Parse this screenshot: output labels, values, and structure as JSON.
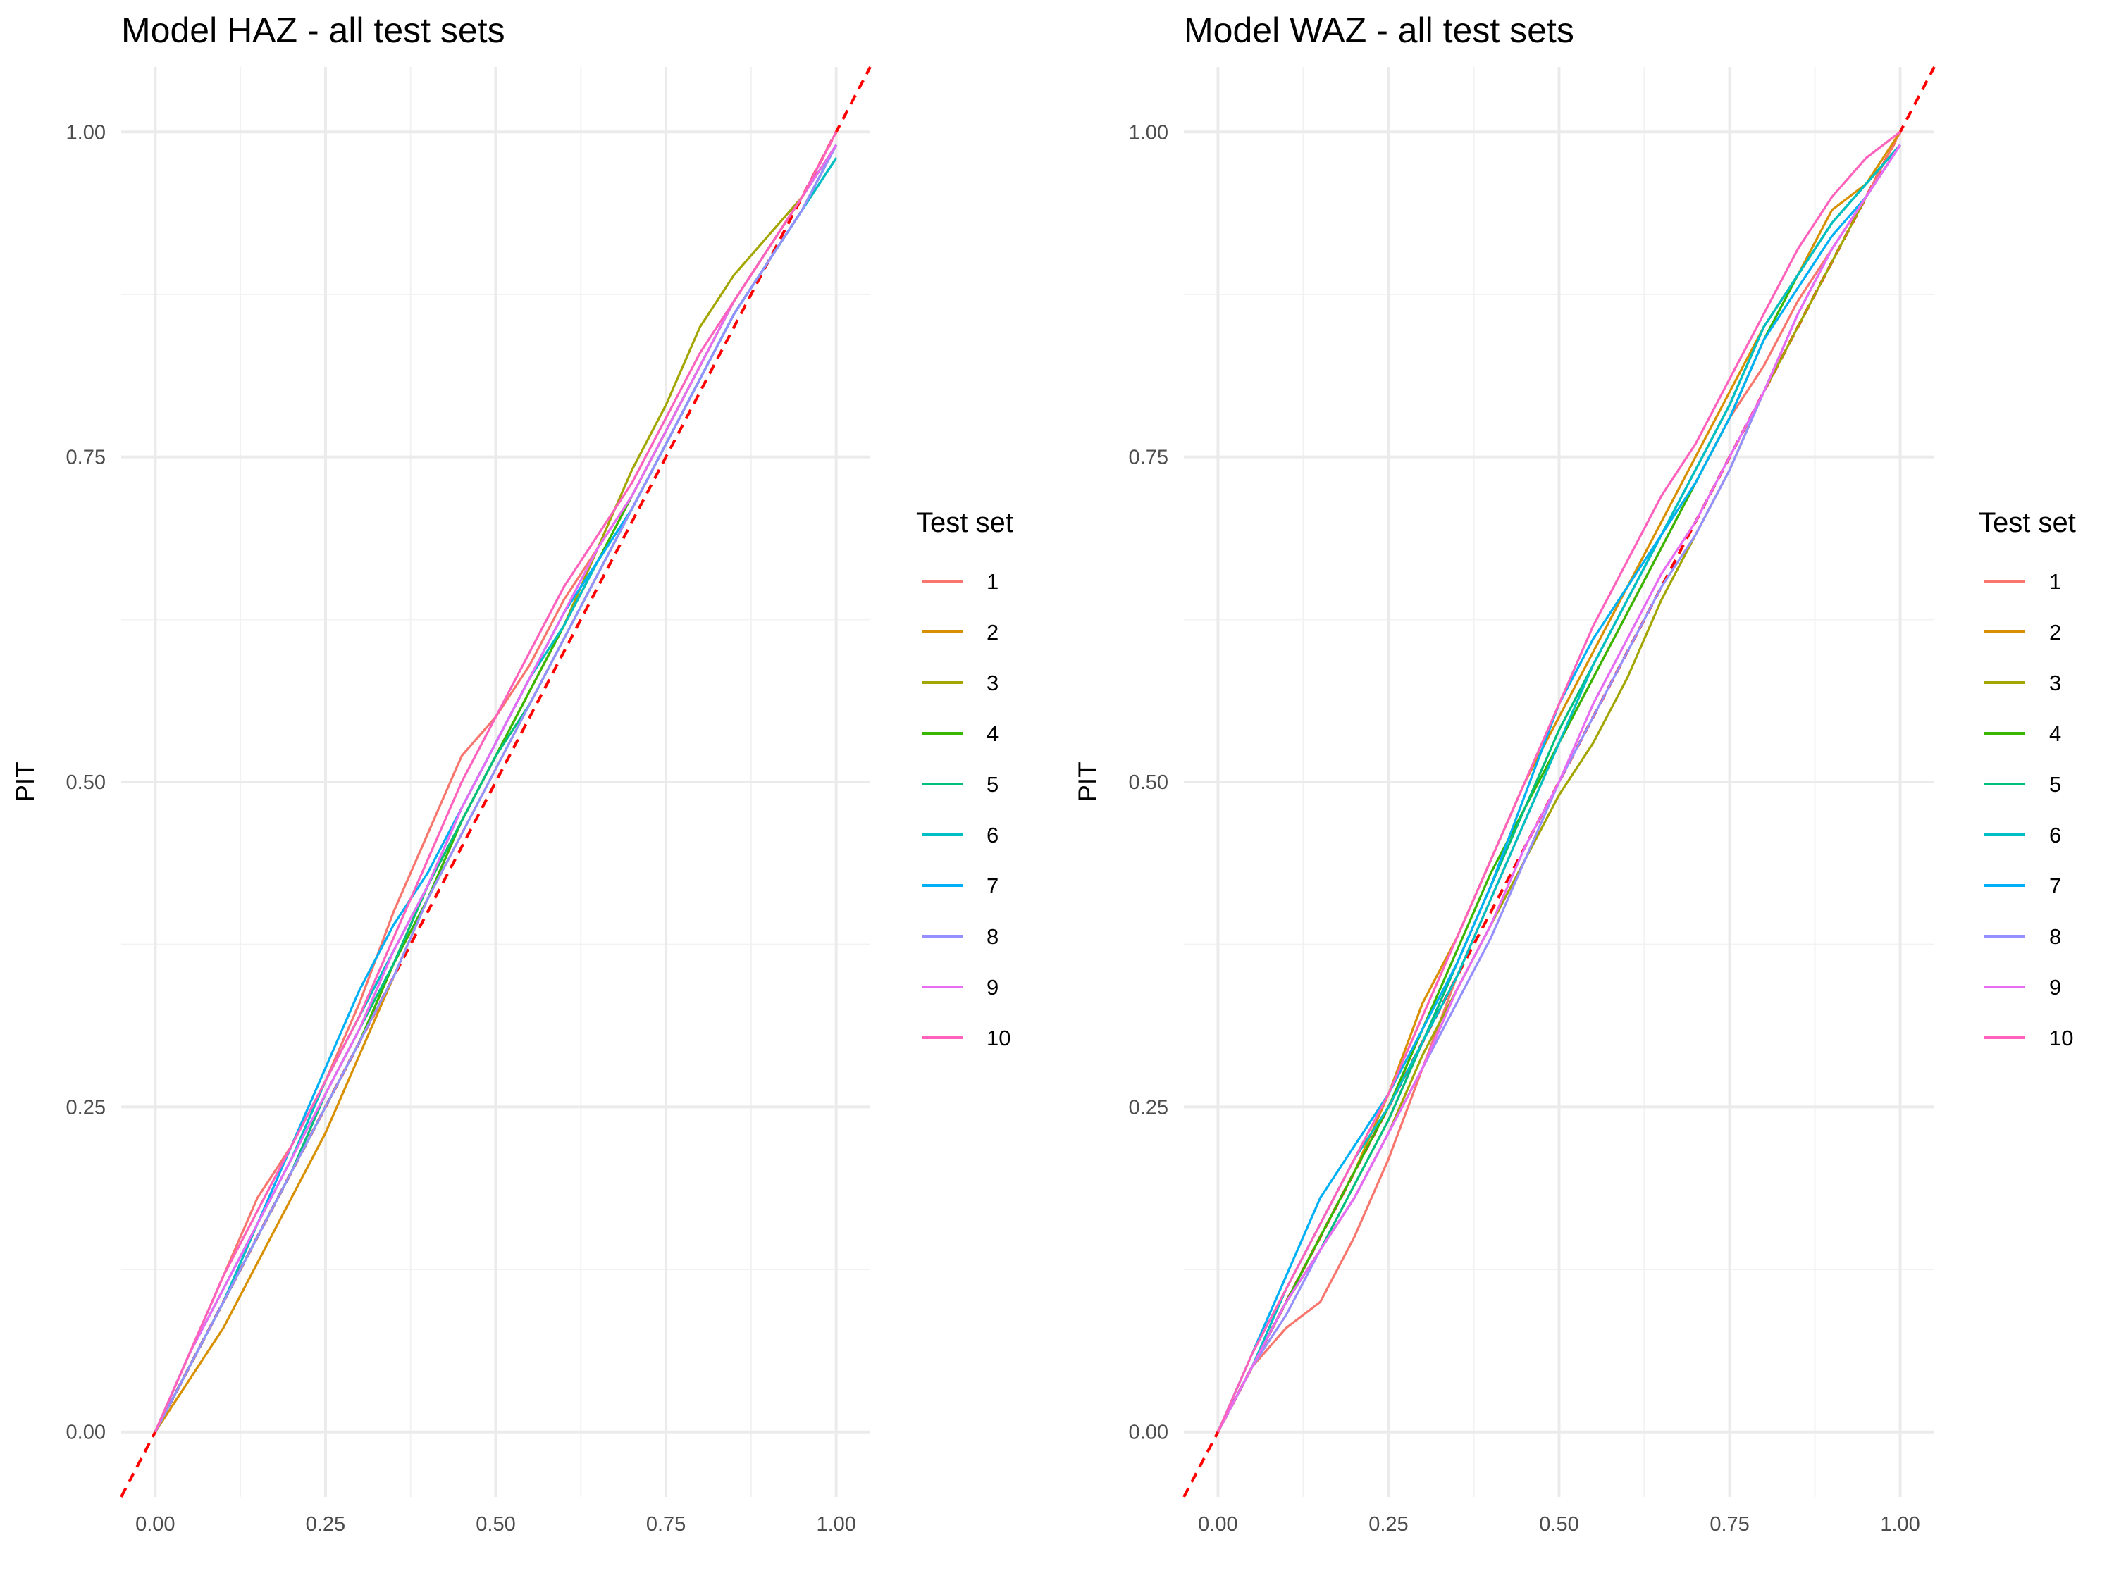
{
  "chart_data": [
    {
      "type": "line",
      "title": "Model HAZ - all test sets",
      "xlabel": "",
      "ylabel": "PIT",
      "xlim": [
        -0.05,
        1.05
      ],
      "ylim": [
        -0.05,
        1.05
      ],
      "x_ticks": [
        "0.00",
        "0.25",
        "0.50",
        "0.75",
        "1.00"
      ],
      "y_ticks": [
        "0.00",
        "0.25",
        "0.50",
        "0.75",
        "1.00"
      ],
      "reference_line": {
        "label": "y = x",
        "color": "#ff0000",
        "style": "dashed"
      },
      "legend": {
        "title": "Test set",
        "position": "right"
      },
      "x": [
        0,
        0.05,
        0.1,
        0.15,
        0.2,
        0.25,
        0.3,
        0.35,
        0.4,
        0.45,
        0.5,
        0.55,
        0.6,
        0.65,
        0.7,
        0.75,
        0.8,
        0.85,
        0.9,
        0.95,
        1.0
      ],
      "series": [
        {
          "name": "1",
          "color": "#F8766D",
          "values": [
            0.0,
            0.06,
            0.12,
            0.18,
            0.22,
            0.27,
            0.33,
            0.4,
            0.46,
            0.52,
            0.55,
            0.59,
            0.64,
            0.68,
            0.72,
            0.77,
            0.82,
            0.87,
            0.91,
            0.95,
            1.0
          ]
        },
        {
          "name": "2",
          "color": "#D89000",
          "values": [
            0.0,
            0.04,
            0.08,
            0.13,
            0.18,
            0.23,
            0.29,
            0.35,
            0.41,
            0.46,
            0.51,
            0.56,
            0.61,
            0.66,
            0.71,
            0.76,
            0.81,
            0.86,
            0.9,
            0.94,
            0.99
          ]
        },
        {
          "name": "3",
          "color": "#A3A500",
          "values": [
            0.0,
            0.05,
            0.1,
            0.15,
            0.2,
            0.25,
            0.3,
            0.36,
            0.42,
            0.47,
            0.52,
            0.57,
            0.62,
            0.68,
            0.74,
            0.79,
            0.85,
            0.89,
            0.92,
            0.95,
            0.99
          ]
        },
        {
          "name": "4",
          "color": "#39B600",
          "values": [
            0.0,
            0.05,
            0.1,
            0.15,
            0.2,
            0.25,
            0.3,
            0.36,
            0.41,
            0.47,
            0.52,
            0.57,
            0.62,
            0.67,
            0.72,
            0.77,
            0.82,
            0.87,
            0.91,
            0.95,
            0.99
          ]
        },
        {
          "name": "5",
          "color": "#00BF7D",
          "values": [
            0.0,
            0.05,
            0.1,
            0.15,
            0.2,
            0.26,
            0.31,
            0.36,
            0.42,
            0.47,
            0.52,
            0.56,
            0.61,
            0.66,
            0.71,
            0.76,
            0.81,
            0.86,
            0.9,
            0.94,
            0.98
          ]
        },
        {
          "name": "6",
          "color": "#00BFC4",
          "values": [
            0.0,
            0.05,
            0.1,
            0.16,
            0.21,
            0.27,
            0.32,
            0.37,
            0.42,
            0.48,
            0.53,
            0.58,
            0.62,
            0.67,
            0.71,
            0.76,
            0.81,
            0.86,
            0.9,
            0.94,
            0.98
          ]
        },
        {
          "name": "7",
          "color": "#00B0F6",
          "values": [
            0.0,
            0.06,
            0.11,
            0.16,
            0.22,
            0.28,
            0.34,
            0.39,
            0.43,
            0.48,
            0.53,
            0.58,
            0.63,
            0.67,
            0.71,
            0.76,
            0.81,
            0.86,
            0.9,
            0.94,
            0.99
          ]
        },
        {
          "name": "8",
          "color": "#9590FF",
          "values": [
            0.0,
            0.05,
            0.1,
            0.15,
            0.2,
            0.25,
            0.3,
            0.35,
            0.41,
            0.46,
            0.51,
            0.56,
            0.61,
            0.66,
            0.71,
            0.76,
            0.81,
            0.86,
            0.9,
            0.94,
            0.99
          ]
        },
        {
          "name": "9",
          "color": "#E76BF3",
          "values": [
            0.0,
            0.06,
            0.11,
            0.16,
            0.21,
            0.26,
            0.31,
            0.37,
            0.42,
            0.48,
            0.53,
            0.58,
            0.63,
            0.68,
            0.72,
            0.77,
            0.82,
            0.87,
            0.91,
            0.95,
            0.99
          ]
        },
        {
          "name": "10",
          "color": "#FF62BC",
          "values": [
            0.0,
            0.06,
            0.12,
            0.17,
            0.22,
            0.27,
            0.32,
            0.38,
            0.44,
            0.5,
            0.55,
            0.6,
            0.65,
            0.69,
            0.73,
            0.78,
            0.83,
            0.87,
            0.91,
            0.95,
            1.0
          ]
        }
      ]
    },
    {
      "type": "line",
      "title": "Model WAZ - all test sets",
      "xlabel": "",
      "ylabel": "PIT",
      "xlim": [
        -0.05,
        1.05
      ],
      "ylim": [
        -0.05,
        1.05
      ],
      "x_ticks": [
        "0.00",
        "0.25",
        "0.50",
        "0.75",
        "1.00"
      ],
      "y_ticks": [
        "0.00",
        "0.25",
        "0.50",
        "0.75",
        "1.00"
      ],
      "reference_line": {
        "label": "y = x",
        "color": "#ff0000",
        "style": "dashed"
      },
      "legend": {
        "title": "Test set",
        "position": "right"
      },
      "x": [
        0,
        0.05,
        0.1,
        0.15,
        0.2,
        0.25,
        0.3,
        0.35,
        0.4,
        0.45,
        0.5,
        0.55,
        0.6,
        0.65,
        0.7,
        0.75,
        0.8,
        0.85,
        0.9,
        0.95,
        1.0
      ],
      "series": [
        {
          "name": "1",
          "color": "#F8766D",
          "values": [
            0.0,
            0.05,
            0.08,
            0.1,
            0.15,
            0.21,
            0.28,
            0.35,
            0.41,
            0.47,
            0.53,
            0.58,
            0.63,
            0.68,
            0.73,
            0.78,
            0.82,
            0.87,
            0.91,
            0.95,
            1.0
          ]
        },
        {
          "name": "2",
          "color": "#D89000",
          "values": [
            0.0,
            0.05,
            0.1,
            0.15,
            0.2,
            0.26,
            0.33,
            0.38,
            0.44,
            0.5,
            0.55,
            0.6,
            0.65,
            0.7,
            0.75,
            0.8,
            0.85,
            0.89,
            0.94,
            0.96,
            1.0
          ]
        },
        {
          "name": "3",
          "color": "#A3A500",
          "values": [
            0.0,
            0.05,
            0.1,
            0.14,
            0.18,
            0.23,
            0.29,
            0.34,
            0.39,
            0.44,
            0.49,
            0.53,
            0.58,
            0.64,
            0.69,
            0.74,
            0.8,
            0.85,
            0.9,
            0.95,
            0.99
          ]
        },
        {
          "name": "4",
          "color": "#39B600",
          "values": [
            0.0,
            0.05,
            0.1,
            0.15,
            0.2,
            0.25,
            0.31,
            0.37,
            0.43,
            0.48,
            0.53,
            0.58,
            0.63,
            0.68,
            0.73,
            0.78,
            0.84,
            0.89,
            0.93,
            0.96,
            0.99
          ]
        },
        {
          "name": "5",
          "color": "#00BF7D",
          "values": [
            0.0,
            0.05,
            0.1,
            0.14,
            0.19,
            0.24,
            0.3,
            0.36,
            0.42,
            0.48,
            0.54,
            0.59,
            0.64,
            0.69,
            0.74,
            0.79,
            0.85,
            0.89,
            0.93,
            0.96,
            0.99
          ]
        },
        {
          "name": "6",
          "color": "#00BFC4",
          "values": [
            0.0,
            0.05,
            0.11,
            0.16,
            0.21,
            0.25,
            0.3,
            0.35,
            0.41,
            0.47,
            0.53,
            0.59,
            0.64,
            0.69,
            0.74,
            0.79,
            0.85,
            0.89,
            0.93,
            0.96,
            0.99
          ]
        },
        {
          "name": "7",
          "color": "#00B0F6",
          "values": [
            0.0,
            0.06,
            0.12,
            0.18,
            0.22,
            0.26,
            0.31,
            0.36,
            0.42,
            0.49,
            0.56,
            0.61,
            0.65,
            0.69,
            0.73,
            0.78,
            0.84,
            0.88,
            0.92,
            0.95,
            0.99
          ]
        },
        {
          "name": "8",
          "color": "#9590FF",
          "values": [
            0.0,
            0.05,
            0.09,
            0.14,
            0.18,
            0.23,
            0.28,
            0.33,
            0.38,
            0.44,
            0.5,
            0.55,
            0.6,
            0.65,
            0.69,
            0.74,
            0.8,
            0.86,
            0.91,
            0.95,
            0.99
          ]
        },
        {
          "name": "9",
          "color": "#E76BF3",
          "values": [
            0.0,
            0.05,
            0.1,
            0.14,
            0.18,
            0.23,
            0.28,
            0.34,
            0.39,
            0.45,
            0.5,
            0.56,
            0.61,
            0.66,
            0.7,
            0.75,
            0.8,
            0.86,
            0.91,
            0.95,
            0.99
          ]
        },
        {
          "name": "10",
          "color": "#FF62BC",
          "values": [
            0.0,
            0.06,
            0.11,
            0.16,
            0.21,
            0.26,
            0.32,
            0.38,
            0.44,
            0.5,
            0.56,
            0.62,
            0.67,
            0.72,
            0.76,
            0.81,
            0.86,
            0.91,
            0.95,
            0.98,
            1.0
          ]
        }
      ]
    }
  ]
}
